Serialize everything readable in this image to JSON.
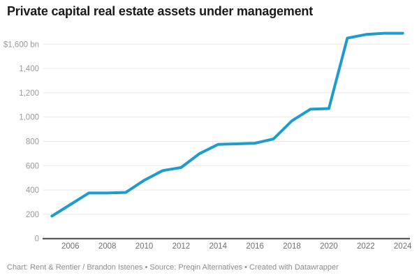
{
  "footer": "Chart: Rent & Rentier / Brandon Istenes • Source: Preqin Alternatives • Created with Datawrapper",
  "chart_data": {
    "type": "line",
    "title": "Private capital real estate assets under management",
    "x": [
      2005,
      2006,
      2007,
      2008,
      2009,
      2010,
      2011,
      2012,
      2013,
      2014,
      2015,
      2016,
      2017,
      2018,
      2019,
      2020,
      2021,
      2022,
      2023,
      2024
    ],
    "series": [
      {
        "name": "Private capital real estate assets under management ($bn)",
        "values": [
          185,
          280,
          375,
          375,
          380,
          480,
          560,
          585,
          700,
          775,
          780,
          785,
          820,
          970,
          1065,
          1070,
          1650,
          1680,
          1690,
          1690
        ]
      }
    ],
    "ylim": [
      0,
      1600
    ],
    "yticks": [
      {
        "v": 0,
        "label": "0"
      },
      {
        "v": 200,
        "label": "200"
      },
      {
        "v": 400,
        "label": "400"
      },
      {
        "v": 600,
        "label": "600"
      },
      {
        "v": 800,
        "label": "800"
      },
      {
        "v": 1000,
        "label": "1,000"
      },
      {
        "v": 1200,
        "label": "1,200"
      },
      {
        "v": 1400,
        "label": "1,400"
      },
      {
        "v": 1600,
        "label": "$1,600 bn"
      }
    ],
    "xticks": [
      "2006",
      "2008",
      "2010",
      "2012",
      "2014",
      "2016",
      "2018",
      "2020",
      "2022",
      "2024"
    ],
    "grid": "horizontal",
    "legend": "none",
    "colors": {
      "line": "#1E9CCB",
      "grid": "#e8e8e8",
      "axis": "#444444",
      "ytick_text": "#9a9a9a",
      "xtick_text": "#6f6f6f",
      "title_text": "#1a1a1a",
      "footer_text": "#8c8c8c"
    }
  }
}
